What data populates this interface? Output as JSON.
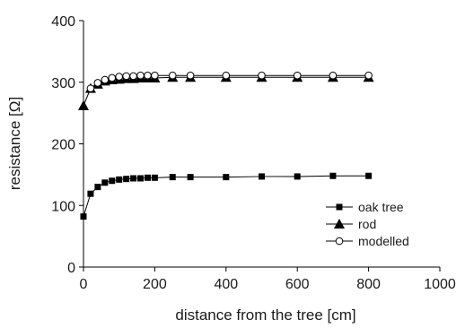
{
  "chart_data": {
    "type": "line",
    "title": "",
    "xlabel": "distance from the tree [cm]",
    "ylabel": "resistance [Ω]",
    "xlim": [
      0,
      1000
    ],
    "ylim": [
      0,
      400
    ],
    "xticks": [
      0,
      200,
      400,
      600,
      800,
      1000
    ],
    "yticks": [
      0,
      100,
      200,
      300,
      400
    ],
    "grid": false,
    "legend_position": "bottom-right",
    "series": [
      {
        "name": "oak tree",
        "marker": "square",
        "color": "#000000",
        "x": [
          0,
          20,
          40,
          60,
          80,
          100,
          120,
          140,
          160,
          180,
          200,
          250,
          300,
          400,
          500,
          600,
          700,
          800
        ],
        "y": [
          82,
          119,
          130,
          137,
          140,
          142,
          143,
          144,
          144,
          145,
          145,
          146,
          146,
          146,
          147,
          147,
          148,
          148
        ]
      },
      {
        "name": "rod",
        "marker": "triangle",
        "color": "#000000",
        "x": [
          0,
          20,
          40,
          60,
          80,
          100,
          120,
          140,
          160,
          180,
          200,
          250,
          300,
          400,
          500,
          600,
          700,
          800
        ],
        "y": [
          262,
          290,
          297,
          302,
          304,
          305,
          306,
          306,
          307,
          307,
          307,
          308,
          308,
          308,
          308,
          308,
          308,
          308
        ]
      },
      {
        "name": "modelled",
        "marker": "circle-open",
        "color": "#000000",
        "x": [
          20,
          40,
          60,
          80,
          100,
          120,
          140,
          160,
          180,
          200,
          250,
          300,
          400,
          500,
          600,
          700,
          800
        ],
        "y": [
          290,
          299,
          304,
          307,
          309,
          310,
          310,
          311,
          311,
          311,
          311,
          311,
          311,
          311,
          311,
          311,
          311
        ]
      }
    ]
  }
}
